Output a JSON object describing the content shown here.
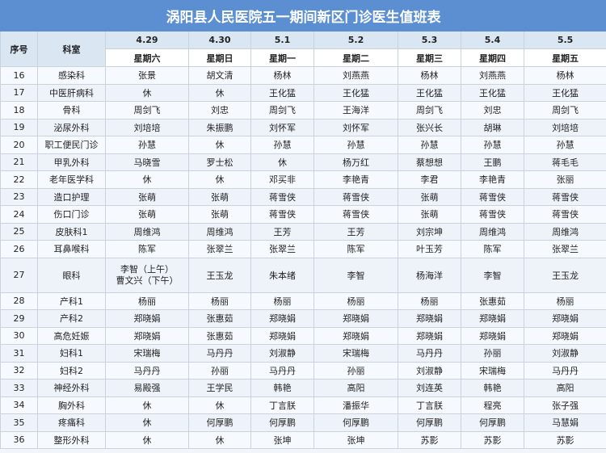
{
  "header": {
    "title": "涡阳县人民医院五一期间新区门诊医生值班表"
  },
  "table": {
    "columns": [
      "序号",
      "科室"
    ],
    "dates": [
      "4.29",
      "4.30",
      "5.1",
      "5.2",
      "5.3",
      "5.4",
      "5.5"
    ],
    "weekdays": [
      "星期六",
      "星期日",
      "星期一",
      "星期二",
      "星期三",
      "星期四",
      "星期五"
    ],
    "rows": [
      {
        "no": "16",
        "dept": "感染科",
        "cells": [
          "张景",
          "胡文清",
          "杨林",
          "刘燕燕",
          "杨林",
          "刘燕燕",
          "杨林"
        ]
      },
      {
        "no": "17",
        "dept": "中医肝病科",
        "cells": [
          "休",
          "休",
          "王化猛",
          "王化猛",
          "王化猛",
          "王化猛",
          "王化猛"
        ]
      },
      {
        "no": "18",
        "dept": "骨科",
        "cells": [
          "周剑飞",
          "刘忠",
          "周剑飞",
          "王海洋",
          "周剑飞",
          "刘忠",
          "周剑飞"
        ]
      },
      {
        "no": "19",
        "dept": "泌尿外科",
        "cells": [
          "刘培培",
          "朱振鹏",
          "刘怀军",
          "刘怀军",
          "张兴长",
          "胡琳",
          "刘培培"
        ]
      },
      {
        "no": "20",
        "dept": "职工便民门诊",
        "cells": [
          "孙慧",
          "休",
          "孙慧",
          "孙慧",
          "孙慧",
          "孙慧",
          "孙慧"
        ]
      },
      {
        "no": "21",
        "dept": "甲乳外科",
        "cells": [
          "马晓雪",
          "罗士松",
          "休",
          "杨万红",
          "蔡想想",
          "王鹏",
          "蒋毛毛"
        ]
      },
      {
        "no": "22",
        "dept": "老年医学科",
        "cells": [
          "休",
          "休",
          "邓买非",
          "李艳青",
          "李君",
          "李艳青",
          "张丽"
        ]
      },
      {
        "no": "23",
        "dept": "造口护理",
        "cells": [
          "张萌",
          "张萌",
          "蒋雪侠",
          "蒋雪侠",
          "张萌",
          "蒋雪侠",
          "蒋雪侠"
        ]
      },
      {
        "no": "24",
        "dept": "伤口门诊",
        "cells": [
          "张萌",
          "张萌",
          "蒋雪侠",
          "蒋雪侠",
          "张萌",
          "蒋雪侠",
          "蒋雪侠"
        ]
      },
      {
        "no": "25",
        "dept": "皮肤科1",
        "cells": [
          "周维鸿",
          "周维鸿",
          "王芳",
          "王芳",
          "刘宗坤",
          "周维鸿",
          "周维鸿"
        ]
      },
      {
        "no": "26",
        "dept": "耳鼻喉科",
        "cells": [
          "陈军",
          "张翠兰",
          "张翠兰",
          "陈军",
          "叶玉芳",
          "陈军",
          "张翠兰"
        ]
      },
      {
        "no": "27",
        "dept": "眼科",
        "cells": [
          [
            "李智（上午）",
            "曹文兴（下午）"
          ],
          "王玉龙",
          "朱本绪",
          "李智",
          "杨海洋",
          "李智",
          "王玉龙"
        ]
      },
      {
        "no": "28",
        "dept": "产科1",
        "cells": [
          "杨丽",
          "杨丽",
          "杨丽",
          "杨丽",
          "杨丽",
          "张惠茹",
          "杨丽"
        ]
      },
      {
        "no": "29",
        "dept": "产科2",
        "cells": [
          "郑晓娟",
          "张惠茹",
          "郑晓娟",
          "郑晓娟",
          "郑晓娟",
          "郑晓娟",
          "郑晓娟"
        ]
      },
      {
        "no": "30",
        "dept": "高危妊娠",
        "cells": [
          "郑晓娟",
          "张惠茹",
          "郑晓娟",
          "郑晓娟",
          "郑晓娟",
          "郑晓娟",
          "郑晓娟"
        ]
      },
      {
        "no": "31",
        "dept": "妇科1",
        "cells": [
          "宋瑞梅",
          "马丹丹",
          "刘淑静",
          "宋瑞梅",
          "马丹丹",
          "孙丽",
          "刘淑静"
        ]
      },
      {
        "no": "32",
        "dept": "妇科2",
        "cells": [
          "马丹丹",
          "孙丽",
          "马丹丹",
          "孙丽",
          "刘淑静",
          "宋瑞梅",
          "马丹丹"
        ]
      },
      {
        "no": "33",
        "dept": "神经外科",
        "cells": [
          "易殿强",
          "王学民",
          "韩艳",
          "高阳",
          "刘连英",
          "韩艳",
          "高阳"
        ]
      },
      {
        "no": "34",
        "dept": "胸外科",
        "cells": [
          "休",
          "休",
          "丁言朕",
          "潘振华",
          "丁言朕",
          "程亮",
          "张子强"
        ]
      },
      {
        "no": "35",
        "dept": "疼痛科",
        "cells": [
          "休",
          "何厚鹏",
          "何厚鹏",
          "何厚鹏",
          "何厚鹏",
          "何厚鹏",
          "马慧娟"
        ]
      },
      {
        "no": "36",
        "dept": "整形外科",
        "cells": [
          "休",
          "休",
          "张坤",
          "张坤",
          "苏影",
          "苏影",
          "苏影"
        ]
      }
    ]
  }
}
